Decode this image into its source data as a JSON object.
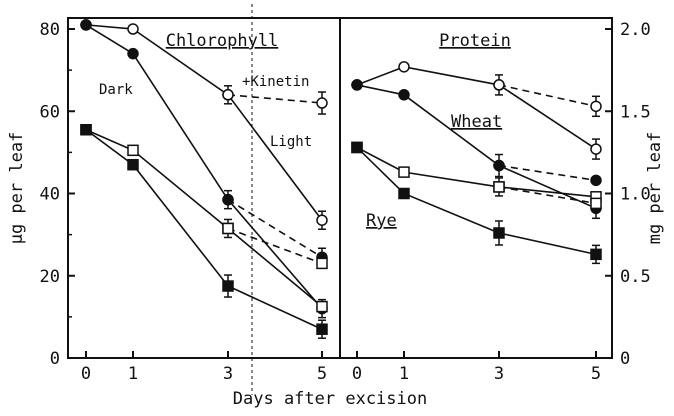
{
  "chart_data": [
    {
      "panel": "Chlorophyll",
      "type": "line",
      "title": "Chlorophyll",
      "xlabel": "Days after excision",
      "ylabel": "µg per leaf",
      "xlim": [
        0,
        5
      ],
      "ylim": [
        0,
        80
      ],
      "xticks": [
        "0",
        "1",
        "3",
        "5"
      ],
      "yticks": [
        "0",
        "20",
        "40",
        "60",
        "80"
      ],
      "grid": false,
      "annotations": [
        "Dark",
        "+Kinetin",
        "Light"
      ],
      "series": [
        {
          "marker": "open-circle",
          "style": "solid",
          "x": [
            0,
            1,
            3,
            5
          ],
          "y": [
            81,
            80,
            64,
            33.5
          ]
        },
        {
          "marker": "filled-circle",
          "style": "solid",
          "x": [
            0,
            1,
            3,
            5
          ],
          "y": [
            81,
            74,
            38.5,
            12
          ]
        },
        {
          "marker": "open-circle",
          "style": "dashed",
          "x": [
            3,
            5
          ],
          "y": [
            64,
            62
          ]
        },
        {
          "marker": "filled-circle",
          "style": "dashed",
          "x": [
            3,
            5
          ],
          "y": [
            38.5,
            24.5
          ]
        },
        {
          "marker": "open-square",
          "style": "solid",
          "x": [
            0,
            1,
            3,
            5
          ],
          "y": [
            55.5,
            50.5,
            31.5,
            12.5
          ]
        },
        {
          "marker": "filled-square",
          "style": "solid",
          "x": [
            0,
            1,
            3,
            5
          ],
          "y": [
            55.5,
            47,
            17.5,
            7
          ]
        },
        {
          "marker": "open-square",
          "style": "dashed",
          "x": [
            3,
            5
          ],
          "y": [
            31.5,
            23
          ]
        }
      ]
    },
    {
      "panel": "Protein",
      "type": "line",
      "title": "Protein",
      "xlabel": "Days after excision",
      "ylabel": "mg per leaf",
      "xlim": [
        0,
        5
      ],
      "ylim": [
        0,
        2.0
      ],
      "xticks": [
        "0",
        "1",
        "3",
        "5"
      ],
      "yticks": [
        "0",
        "0.5",
        "1.0",
        "1.5",
        "2.0"
      ],
      "grid": false,
      "series": [
        {
          "name": "Wheat",
          "marker": "open-circle",
          "style": "solid",
          "x": [
            0,
            1,
            3,
            5
          ],
          "y": [
            1.66,
            1.77,
            1.66,
            1.27
          ]
        },
        {
          "name": "Wheat",
          "marker": "filled-circle",
          "style": "solid",
          "x": [
            0,
            1,
            3,
            5
          ],
          "y": [
            1.66,
            1.6,
            1.17,
            0.91
          ]
        },
        {
          "name": "Wheat",
          "marker": "open-circle",
          "style": "dashed",
          "x": [
            3,
            5
          ],
          "y": [
            1.66,
            1.53
          ]
        },
        {
          "name": "Wheat",
          "marker": "filled-circle",
          "style": "dashed",
          "x": [
            3,
            5
          ],
          "y": [
            1.17,
            1.08
          ]
        },
        {
          "name": "Rye",
          "marker": "open-square",
          "style": "solid",
          "x": [
            0,
            1,
            3,
            5
          ],
          "y": [
            1.28,
            1.13,
            1.04,
            0.98
          ]
        },
        {
          "name": "Rye",
          "marker": "filled-square",
          "style": "solid",
          "x": [
            0,
            1,
            3,
            5
          ],
          "y": [
            1.28,
            1.0,
            0.76,
            0.63
          ]
        },
        {
          "name": "Rye",
          "marker": "open-square",
          "style": "dashed",
          "x": [
            3,
            5
          ],
          "y": [
            1.04,
            0.94
          ]
        }
      ]
    }
  ]
}
